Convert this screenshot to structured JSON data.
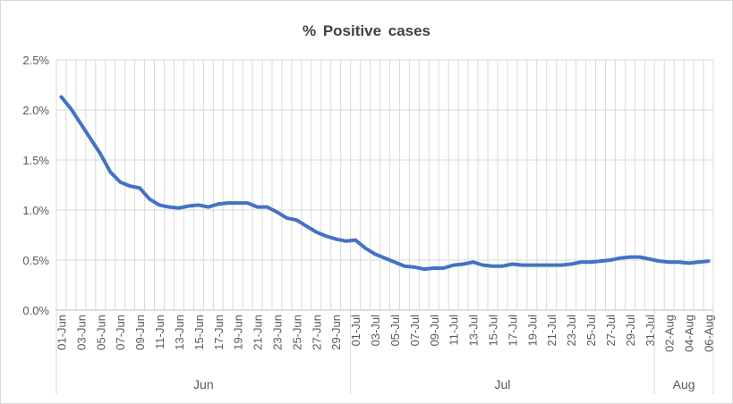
{
  "chart_data": {
    "type": "line",
    "title": "% Positive cases",
    "xlabel": "",
    "ylabel": "",
    "ylim": [
      0,
      2.5
    ],
    "yticks": [
      "0.0%",
      "0.5%",
      "1.0%",
      "1.5%",
      "2.0%",
      "2.5%"
    ],
    "ytick_values": [
      0,
      0.5,
      1.0,
      1.5,
      2.0,
      2.5
    ],
    "grid": true,
    "legend": "none",
    "line_color": "#4472c4",
    "x": [
      "01-Jun",
      "02-Jun",
      "03-Jun",
      "04-Jun",
      "05-Jun",
      "06-Jun",
      "07-Jun",
      "08-Jun",
      "09-Jun",
      "10-Jun",
      "11-Jun",
      "12-Jun",
      "13-Jun",
      "14-Jun",
      "15-Jun",
      "16-Jun",
      "17-Jun",
      "18-Jun",
      "19-Jun",
      "20-Jun",
      "21-Jun",
      "22-Jun",
      "23-Jun",
      "24-Jun",
      "25-Jun",
      "26-Jun",
      "27-Jun",
      "28-Jun",
      "29-Jun",
      "30-Jun",
      "01-Jul",
      "02-Jul",
      "03-Jul",
      "04-Jul",
      "05-Jul",
      "06-Jul",
      "07-Jul",
      "08-Jul",
      "09-Jul",
      "10-Jul",
      "11-Jul",
      "12-Jul",
      "13-Jul",
      "14-Jul",
      "15-Jul",
      "16-Jul",
      "17-Jul",
      "18-Jul",
      "19-Jul",
      "20-Jul",
      "21-Jul",
      "22-Jul",
      "23-Jul",
      "24-Jul",
      "25-Jul",
      "26-Jul",
      "27-Jul",
      "28-Jul",
      "29-Jul",
      "30-Jul",
      "31-Jul",
      "01-Aug",
      "02-Aug",
      "03-Aug",
      "04-Aug",
      "05-Aug",
      "06-Aug"
    ],
    "xtick_labels": [
      "01-Jun",
      "03-Jun",
      "05-Jun",
      "07-Jun",
      "09-Jun",
      "11-Jun",
      "13-Jun",
      "15-Jun",
      "17-Jun",
      "19-Jun",
      "21-Jun",
      "23-Jun",
      "25-Jun",
      "27-Jun",
      "29-Jun",
      "01-Jul",
      "03-Jul",
      "05-Jul",
      "07-Jul",
      "09-Jul",
      "11-Jul",
      "13-Jul",
      "15-Jul",
      "17-Jul",
      "19-Jul",
      "21-Jul",
      "23-Jul",
      "25-Jul",
      "27-Jul",
      "29-Jul",
      "31-Jul",
      "02-Aug",
      "04-Aug",
      "06-Aug"
    ],
    "month_groups": [
      {
        "label": "Jun",
        "start": 0,
        "end": 29
      },
      {
        "label": "Jul",
        "start": 30,
        "end": 60
      },
      {
        "label": "Aug",
        "start": 61,
        "end": 66
      }
    ],
    "series": [
      {
        "values": [
          2.13,
          2.01,
          1.86,
          1.71,
          1.56,
          1.38,
          1.28,
          1.24,
          1.22,
          1.11,
          1.05,
          1.03,
          1.02,
          1.04,
          1.05,
          1.03,
          1.06,
          1.07,
          1.07,
          1.07,
          1.03,
          1.03,
          0.98,
          0.92,
          0.9,
          0.84,
          0.78,
          0.74,
          0.71,
          0.69,
          0.7,
          0.62,
          0.56,
          0.52,
          0.48,
          0.44,
          0.43,
          0.41,
          0.42,
          0.42,
          0.45,
          0.46,
          0.48,
          0.45,
          0.44,
          0.44,
          0.46,
          0.45,
          0.45,
          0.45,
          0.45,
          0.45,
          0.46,
          0.48,
          0.48,
          0.49,
          0.5,
          0.52,
          0.53,
          0.53,
          0.51,
          0.49,
          0.48,
          0.48,
          0.47,
          0.48,
          0.49
        ]
      }
    ]
  }
}
